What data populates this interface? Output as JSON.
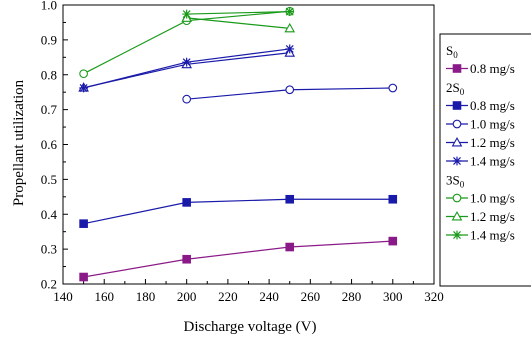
{
  "chart_data": {
    "type": "line",
    "xlabel": "Discharge voltage (V)",
    "ylabel": "Propellant utilization",
    "xlim": [
      140,
      320
    ],
    "ylim": [
      0.2,
      1.0
    ],
    "xticks": [
      140,
      160,
      180,
      200,
      220,
      240,
      260,
      280,
      300,
      320
    ],
    "yticks": [
      0.2,
      0.3,
      0.4,
      0.5,
      0.6,
      0.7,
      0.8,
      0.9,
      1.0
    ],
    "x_tick_labels": [
      "140",
      "160",
      "180",
      "200",
      "220",
      "240",
      "260",
      "280",
      "300",
      "320"
    ],
    "y_tick_labels": [
      "0.2",
      "0.3",
      "0.4",
      "0.5",
      "0.6",
      "0.7",
      "0.8",
      "0.9",
      "1.0"
    ],
    "grid": false,
    "legend_position": "right",
    "legend_groups": [
      {
        "label": "S",
        "subscript": "0",
        "series": [
          0
        ]
      },
      {
        "label": "2S",
        "subscript": "0",
        "series": [
          1,
          2,
          3,
          4
        ]
      },
      {
        "label": "3S",
        "subscript": "0",
        "series": [
          5,
          6,
          7
        ]
      }
    ],
    "series": [
      {
        "name": "0.8 mg/s",
        "color": "#8B1A89",
        "marker": "filled-square",
        "x": [
          150,
          200,
          250,
          300
        ],
        "y": [
          0.22,
          0.271,
          0.306,
          0.323
        ]
      },
      {
        "name": "0.8 mg/s",
        "color": "#1A1AAA",
        "marker": "filled-square",
        "x": [
          150,
          200,
          250,
          300
        ],
        "y": [
          0.373,
          0.434,
          0.443,
          0.443
        ]
      },
      {
        "name": "1.0 mg/s",
        "color": "#1A1AAA",
        "marker": "open-circle",
        "x": [
          200,
          250,
          300
        ],
        "y": [
          0.73,
          0.757,
          0.762
        ]
      },
      {
        "name": "1.2 mg/s",
        "color": "#1A1AAA",
        "marker": "open-triangle",
        "x": [
          150,
          200,
          250
        ],
        "y": [
          0.763,
          0.83,
          0.863
        ]
      },
      {
        "name": "1.4 mg/s",
        "color": "#1A1AAA",
        "marker": "asterisk",
        "x": [
          150,
          200,
          250
        ],
        "y": [
          0.762,
          0.836,
          0.874
        ]
      },
      {
        "name": "1.0 mg/s",
        "color": "#1A9A1A",
        "marker": "open-circle",
        "x": [
          150,
          200,
          250
        ],
        "y": [
          0.803,
          0.955,
          0.982
        ]
      },
      {
        "name": "1.2 mg/s",
        "color": "#1A9A1A",
        "marker": "open-triangle",
        "x": [
          200,
          250
        ],
        "y": [
          0.963,
          0.933
        ]
      },
      {
        "name": "1.4 mg/s",
        "color": "#1A9A1A",
        "marker": "asterisk",
        "x": [
          200,
          250
        ],
        "y": [
          0.974,
          0.981
        ]
      }
    ]
  }
}
